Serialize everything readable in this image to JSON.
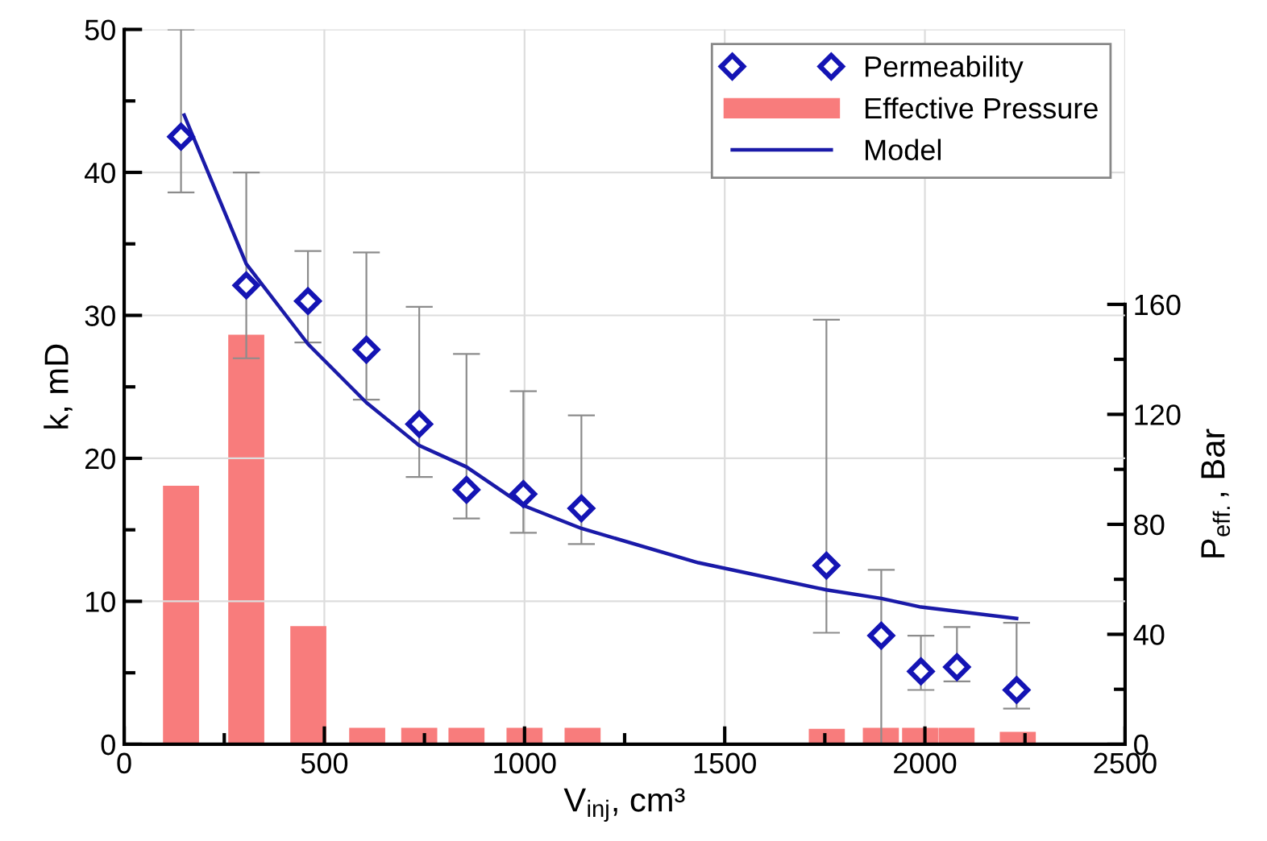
{
  "chart_data": {
    "type": "scatter",
    "xlabel": "V$_{inj}$, cm³",
    "ylabel": "k, mD",
    "y2label": "P$_{eff.}$, Bar",
    "xlim": [
      0,
      2500
    ],
    "ylim": [
      0,
      50
    ],
    "y2lim": [
      0,
      260
    ],
    "xticks": [
      0,
      {
        "value": 250,
        "label": null
      },
      500,
      {
        "value": 750,
        "label": null
      },
      1000,
      {
        "value": 1250,
        "label": null
      },
      1500,
      {
        "value": 1750,
        "label": null
      },
      2000,
      {
        "value": 2250,
        "label": null
      },
      2500
    ],
    "yticks": [
      0,
      {
        "value": 5,
        "label": null
      },
      10,
      {
        "value": 15,
        "label": null
      },
      20,
      {
        "value": 25,
        "label": null
      },
      30,
      {
        "value": 35,
        "label": null
      },
      40,
      {
        "value": 45,
        "label": null
      },
      50
    ],
    "y2ticks": [
      0,
      {
        "value": 20,
        "label": null
      },
      40,
      {
        "value": 60,
        "label": null
      },
      80,
      {
        "value": 100,
        "label": null
      },
      120,
      {
        "value": 140,
        "label": null
      },
      160
    ],
    "grid": true,
    "legend": "top right",
    "series": [
      {
        "name": "Permeability",
        "marker": "diamond",
        "color": "#1414b4",
        "x": [
          142,
          305,
          459,
          605,
          737,
          855,
          997,
          1142,
          1754,
          1891,
          1990,
          2080,
          2229
        ],
        "values": [
          42.5,
          32.1,
          31.0,
          27.6,
          22.4,
          17.8,
          17.5,
          16.5,
          12.5,
          7.6,
          5.1,
          5.4,
          3.8
        ],
        "errors": [
          [
            38.6,
            50
          ],
          [
            27.0,
            40
          ],
          [
            28.1,
            34.5
          ],
          [
            24.1,
            34.4
          ],
          [
            18.7,
            30.6
          ],
          [
            15.8,
            27.3
          ],
          [
            14.8,
            24.7
          ],
          [
            14.0,
            23.0
          ],
          [
            7.8,
            29.7
          ],
          [
            0,
            12.2
          ],
          [
            3.8,
            7.6
          ],
          [
            4.4,
            8.2
          ],
          [
            2.5,
            8.5
          ]
        ]
      },
      {
        "name": "Effective Pressure",
        "type": "bar",
        "axis": "y2",
        "color": "#f87c7c",
        "x": [
          142,
          305,
          460,
          607,
          737,
          855,
          1000,
          1145,
          1755,
          1890,
          1988,
          2079,
          2232
        ],
        "values": [
          94,
          149,
          43,
          6,
          6,
          6,
          6,
          6,
          5.6,
          6,
          6,
          6,
          4.5
        ]
      },
      {
        "name": "Model",
        "type": "line",
        "marker": "none",
        "line_style": "solid",
        "color": "#1a1aa8",
        "x": [
          150,
          305,
          459,
          605,
          737,
          855,
          997,
          1142,
          1434,
          1754,
          1891,
          1990,
          2229
        ],
        "values": [
          44.0,
          33.6,
          28.0,
          23.9,
          20.9,
          19.4,
          16.7,
          15.1,
          12.7,
          10.8,
          10.2,
          9.6,
          8.8
        ]
      }
    ]
  }
}
